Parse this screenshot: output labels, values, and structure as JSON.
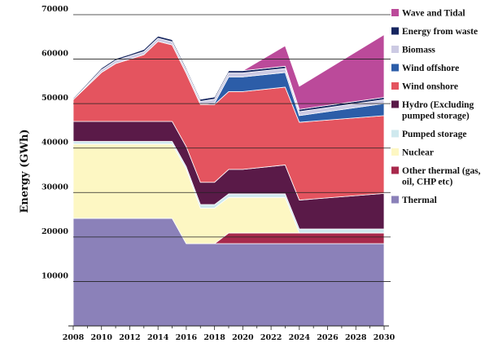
{
  "chart_data": {
    "type": "area",
    "stacked": true,
    "title": "",
    "xlabel": "",
    "ylabel": "Energy (GWh)",
    "xlim": [
      2008,
      2030
    ],
    "ylim": [
      0,
      70000
    ],
    "x_ticks": [
      "2008",
      "2010",
      "2012",
      "2014",
      "2016",
      "2018",
      "2020",
      "2022",
      "2024",
      "2026",
      "2028",
      "2030"
    ],
    "y_ticks": [
      "10000",
      "20000",
      "30000",
      "40000",
      "50000",
      "60000",
      "70000"
    ],
    "grid": "horizontal",
    "legend_position": "right",
    "x": [
      2008,
      2010,
      2011,
      2012,
      2013,
      2014,
      2015,
      2016,
      2017,
      2018,
      2019,
      2020,
      2023,
      2024,
      2030
    ],
    "series": [
      {
        "name": "Thermal",
        "color": "#8b81b9",
        "values": [
          24200,
          24200,
          24200,
          24200,
          24200,
          24200,
          24200,
          18500,
          18500,
          18500,
          18500,
          18500,
          18500,
          18500,
          18500
        ]
      },
      {
        "name": "Other thermal (gas, oil, CHP etc)",
        "color": "#a8294c",
        "values": [
          0,
          0,
          0,
          0,
          0,
          0,
          0,
          0,
          0,
          0,
          2400,
          2400,
          2400,
          2400,
          2400
        ]
      },
      {
        "name": "Nuclear",
        "color": "#fdf7c3",
        "values": [
          16700,
          16700,
          16700,
          16700,
          16700,
          16700,
          16700,
          16700,
          8000,
          8000,
          8000,
          8000,
          8000,
          0,
          0
        ]
      },
      {
        "name": "Pumped storage",
        "color": "#cfe9ee",
        "values": [
          600,
          600,
          600,
          600,
          600,
          600,
          600,
          600,
          800,
          800,
          800,
          800,
          800,
          900,
          900
        ]
      },
      {
        "name": "Hydro (Excluding pumped storage)",
        "color": "#5a1a48",
        "values": [
          4500,
          4500,
          4500,
          4500,
          4500,
          4500,
          4500,
          4500,
          5000,
          5000,
          5500,
          5500,
          6500,
          6500,
          8000
        ]
      },
      {
        "name": "Wind onshore",
        "color": "#e4545f",
        "values": [
          4900,
          11000,
          13000,
          14000,
          15000,
          18000,
          17200,
          16500,
          17500,
          17500,
          17500,
          17500,
          17500,
          17500,
          17500
        ]
      },
      {
        "name": "Wind offshore",
        "color": "#2c5da8",
        "values": [
          0,
          0,
          0,
          0,
          0,
          0,
          0,
          0,
          0,
          300,
          3300,
          3300,
          3300,
          1500,
          2700
        ]
      },
      {
        "name": "Biomass",
        "color": "#cccae3",
        "values": [
          0,
          600,
          700,
          700,
          700,
          700,
          700,
          700,
          700,
          900,
          900,
          900,
          900,
          900,
          900
        ]
      },
      {
        "name": "Energy from waste",
        "color": "#162660",
        "values": [
          300,
          400,
          400,
          400,
          500,
          500,
          500,
          500,
          500,
          500,
          500,
          500,
          500,
          500,
          500
        ]
      },
      {
        "name": "Wave and Tidal",
        "color": "#bb4a9a",
        "values": [
          0,
          0,
          0,
          0,
          0,
          0,
          0,
          0,
          0,
          0,
          0,
          0,
          4600,
          5200,
          14100
        ]
      }
    ],
    "legend_order": [
      "Wave and Tidal",
      "Energy from waste",
      "Biomass",
      "Wind offshore",
      "Wind onshore",
      "Hydro (Excluding pumped storage)",
      "Pumped storage",
      "Nuclear",
      "Other thermal (gas, oil, CHP etc)",
      "Thermal"
    ],
    "legend_labels": {
      "Wave and Tidal": [
        "Wave and Tidal"
      ],
      "Energy from waste": [
        "Energy from waste"
      ],
      "Biomass": [
        "Biomass"
      ],
      "Wind offshore": [
        "Wind offshore"
      ],
      "Wind onshore": [
        "Wind onshore"
      ],
      "Hydro (Excluding pumped storage)": [
        "Hydro (Excluding",
        "pumped storage)"
      ],
      "Pumped storage": [
        "Pumped storage"
      ],
      "Nuclear": [
        "Nuclear"
      ],
      "Other thermal (gas, oil, CHP etc)": [
        "Other thermal (gas,",
        "oil, CHP etc)"
      ],
      "Thermal": [
        "Thermal"
      ]
    }
  }
}
